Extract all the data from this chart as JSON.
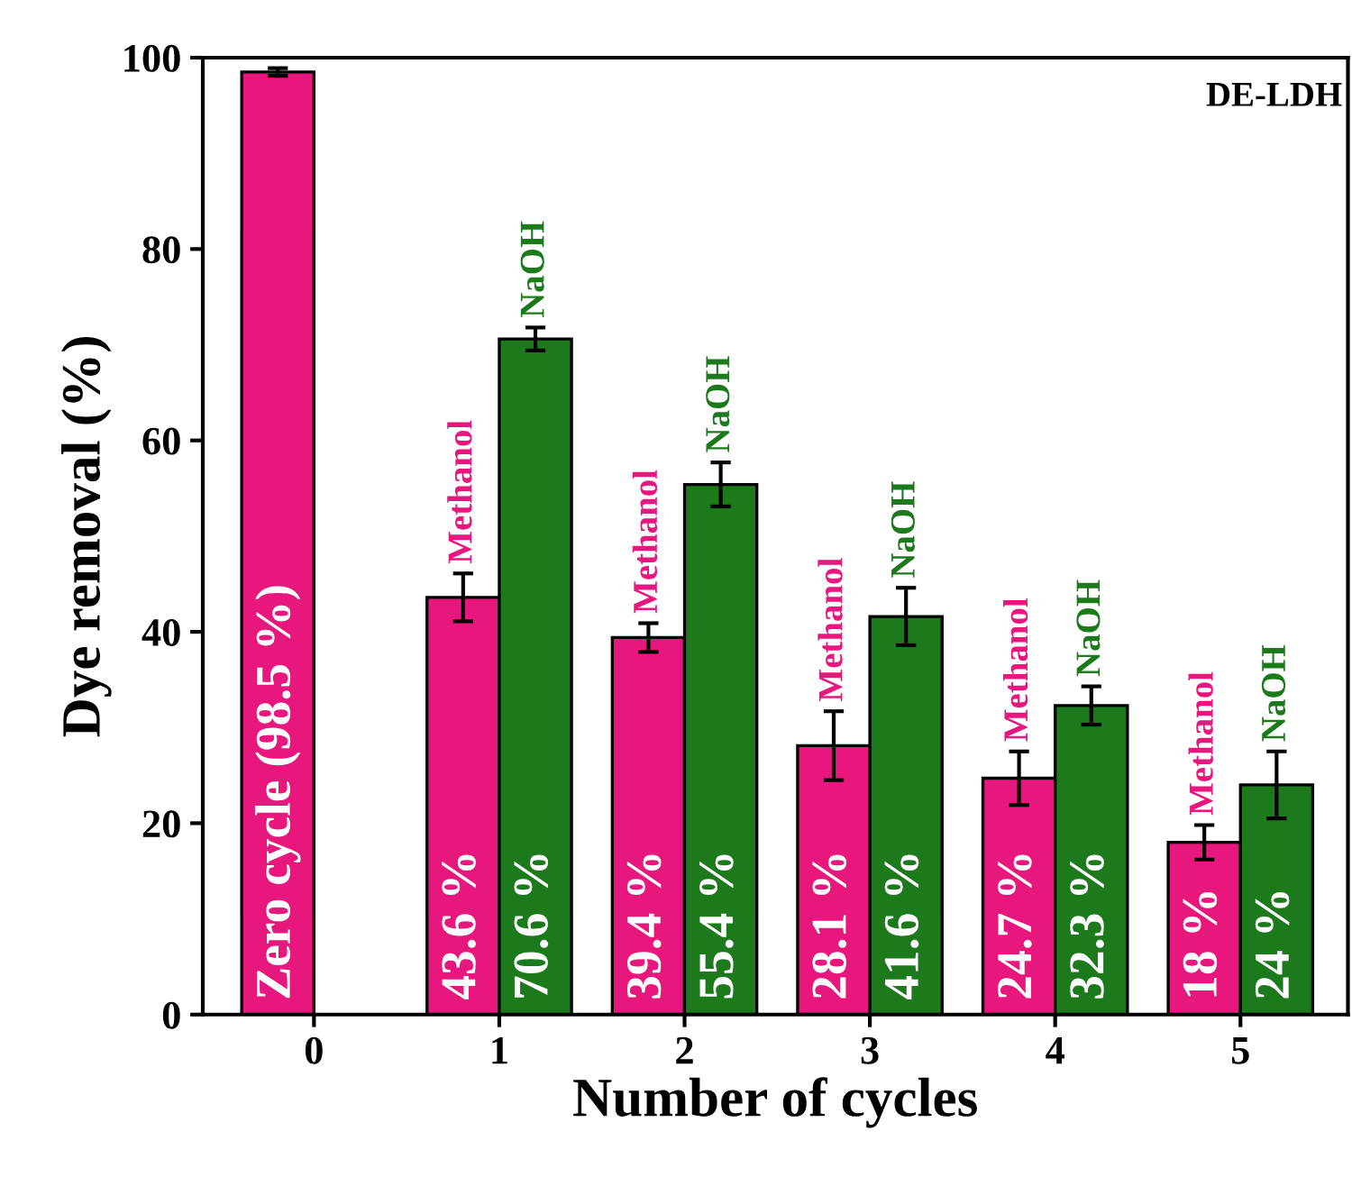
{
  "chart_data": {
    "type": "bar",
    "xlabel": "Number of cycles",
    "ylabel": "Dye removal (%)",
    "categories": [
      "0",
      "1",
      "2",
      "3",
      "4",
      "5"
    ],
    "series": [
      {
        "name": "Methanol",
        "color": "#e8177d",
        "values": [
          98.5,
          43.6,
          39.4,
          28.1,
          24.7,
          18
        ],
        "errors": [
          0.4,
          2.5,
          1.5,
          3.6,
          2.8,
          1.8
        ],
        "value_labels": [
          "Zero cycle (98.5 %)",
          "43.6 %",
          "39.4 %",
          "28.1 %",
          "24.7 %",
          "18 %"
        ]
      },
      {
        "name": "NaOH",
        "color": "#1c7a1c",
        "values": [
          null,
          70.6,
          55.4,
          41.6,
          32.3,
          24
        ],
        "errors": [
          null,
          1.2,
          2.3,
          3.0,
          2.0,
          3.5
        ],
        "value_labels": [
          null,
          "70.6 %",
          "55.4 %",
          "41.6 %",
          "32.3 %",
          "24 %"
        ]
      }
    ],
    "ylim": [
      0,
      100
    ],
    "yticks": [
      0,
      20,
      40,
      60,
      80,
      100
    ],
    "grid": false,
    "legend": false,
    "annotations": [
      "DE-LDH"
    ]
  }
}
